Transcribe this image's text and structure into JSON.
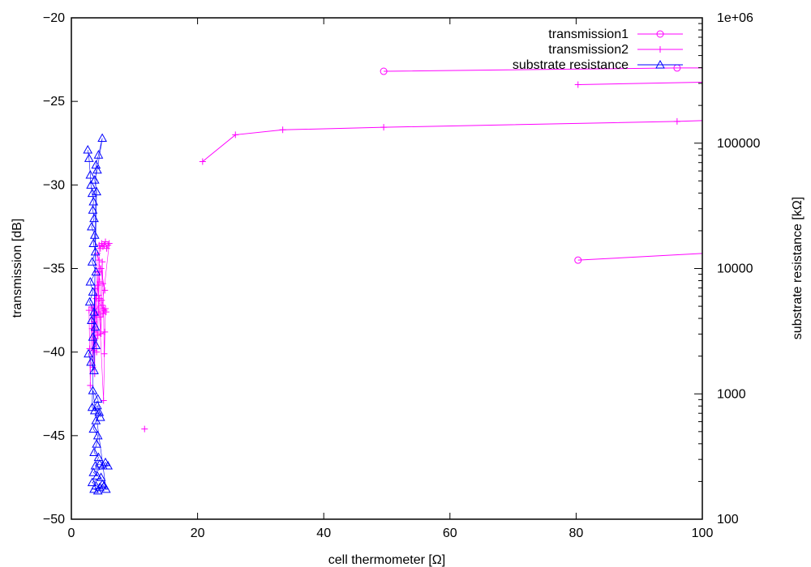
{
  "chart_data": {
    "type": "scatter",
    "xlabel": "cell thermometer [Ω]",
    "ylabel": "transmission [dB]",
    "y2label": "substrate resistance [kΩ]",
    "xlim": [
      0,
      100
    ],
    "ylim": [
      -50,
      -20
    ],
    "y2lim": [
      100,
      1000000
    ],
    "y2scale": "log",
    "xticks": [
      "0",
      "20",
      "40",
      "60",
      "80",
      "100"
    ],
    "yticks": [
      "−50",
      "−45",
      "−40",
      "−35",
      "−30",
      "−25",
      "−20"
    ],
    "y2ticks": [
      "100",
      "1000",
      "10000",
      "100000",
      "1e+06"
    ],
    "grid": false,
    "legend_position": "top-right",
    "colors": {
      "transmission1": "#ff00ff",
      "transmission2": "#ff00ff",
      "substrate": "#0000ff"
    },
    "series": [
      {
        "name": "transmission1",
        "marker": "circle",
        "segments": [
          [
            [
              49.5,
              -23.2
            ],
            [
              96.0,
              -23.0
            ],
            [
              100,
              -23.0
            ]
          ],
          [
            [
              80.3,
              -34.5
            ],
            [
              100,
              -34.1
            ]
          ]
        ]
      },
      {
        "name": "transmission2",
        "marker": "plus",
        "segments": [
          [
            [
              20.8,
              -28.6
            ],
            [
              26.0,
              -27.0
            ],
            [
              33.5,
              -26.7
            ],
            [
              49.5,
              -26.55
            ],
            [
              96.0,
              -26.2
            ],
            [
              100,
              -26.15
            ]
          ],
          [
            [
              80.3,
              -24.0
            ],
            [
              100,
              -23.85
            ]
          ],
          [
            [
              11.6,
              -44.6
            ]
          ]
        ],
        "cluster": [
          [
            2.8,
            -37.5
          ],
          [
            2.9,
            -39.8
          ],
          [
            3.0,
            -42.0
          ],
          [
            3.2,
            -37.3
          ],
          [
            3.3,
            -38.6
          ],
          [
            3.4,
            -40.9
          ],
          [
            3.5,
            -37.4
          ],
          [
            3.6,
            -39.9
          ],
          [
            3.7,
            -41.3
          ],
          [
            3.8,
            -36.2
          ],
          [
            3.9,
            -37.8
          ],
          [
            4.0,
            -38.8
          ],
          [
            4.1,
            -35.2
          ],
          [
            4.2,
            -36.0
          ],
          [
            4.3,
            -37.6
          ],
          [
            4.4,
            -34.5
          ],
          [
            4.5,
            -35.8
          ],
          [
            4.6,
            -37.9
          ],
          [
            4.7,
            -38.9
          ],
          [
            4.8,
            -36.9
          ],
          [
            4.9,
            -34.6
          ],
          [
            5.0,
            -35.9
          ],
          [
            5.1,
            -37.4
          ],
          [
            5.2,
            -40.1
          ],
          [
            5.3,
            -38.8
          ],
          [
            4.2,
            -39.0
          ],
          [
            4.4,
            -33.6
          ],
          [
            4.6,
            -33.8
          ],
          [
            4.8,
            -33.5
          ],
          [
            5.0,
            -33.7
          ],
          [
            5.2,
            -33.6
          ],
          [
            5.4,
            -33.4
          ],
          [
            5.6,
            -33.8
          ],
          [
            5.8,
            -33.6
          ],
          [
            6.0,
            -33.5
          ],
          [
            4.9,
            -37.2
          ],
          [
            5.0,
            -37.7
          ],
          [
            5.2,
            -37.5
          ],
          [
            5.4,
            -37.4
          ],
          [
            5.1,
            -42.9
          ],
          [
            4.3,
            -36.6
          ],
          [
            4.5,
            -36.8
          ],
          [
            3.6,
            -38.2
          ],
          [
            3.8,
            -39.2
          ],
          [
            4.0,
            -40.0
          ],
          [
            4.1,
            -34.1
          ],
          [
            5.3,
            -36.3
          ],
          [
            4.7,
            -35.0
          ],
          [
            3.9,
            -36.8
          ],
          [
            5.5,
            -37.6
          ]
        ]
      },
      {
        "name": "substrate resistance",
        "marker": "triangle",
        "cluster": [
          [
            2.6,
            -27.9
          ],
          [
            2.8,
            -28.4
          ],
          [
            3.0,
            -29.4
          ],
          [
            3.1,
            -30.0
          ],
          [
            3.3,
            -30.5
          ],
          [
            3.5,
            -31.0
          ],
          [
            3.4,
            -31.5
          ],
          [
            3.6,
            -32.0
          ],
          [
            3.2,
            -32.5
          ],
          [
            3.7,
            -33.0
          ],
          [
            3.5,
            -33.5
          ],
          [
            3.8,
            -34.0
          ],
          [
            3.3,
            -34.6
          ],
          [
            3.9,
            -35.2
          ],
          [
            3.0,
            -35.8
          ],
          [
            3.4,
            -36.4
          ],
          [
            2.9,
            -37.0
          ],
          [
            3.6,
            -37.6
          ],
          [
            3.2,
            -38.1
          ],
          [
            3.8,
            -38.5
          ],
          [
            3.4,
            -39.1
          ],
          [
            3.9,
            -39.6
          ],
          [
            2.7,
            -40.1
          ],
          [
            3.1,
            -40.6
          ],
          [
            3.6,
            -41.1
          ],
          [
            3.9,
            -28.8
          ],
          [
            4.3,
            -28.2
          ],
          [
            4.9,
            -27.2
          ],
          [
            4.1,
            -29.1
          ],
          [
            3.7,
            -29.7
          ],
          [
            4.0,
            -30.4
          ],
          [
            3.3,
            -43.3
          ],
          [
            3.7,
            -43.5
          ],
          [
            4.1,
            -43.2
          ],
          [
            4.4,
            -43.6
          ],
          [
            3.9,
            -44.1
          ],
          [
            3.5,
            -44.6
          ],
          [
            4.2,
            -45.0
          ],
          [
            4.0,
            -45.5
          ],
          [
            3.6,
            -46.0
          ],
          [
            4.3,
            -46.3
          ],
          [
            3.8,
            -46.8
          ],
          [
            4.5,
            -46.7
          ],
          [
            5.0,
            -46.8
          ],
          [
            5.4,
            -46.6
          ],
          [
            5.8,
            -46.8
          ],
          [
            3.5,
            -47.2
          ],
          [
            4.1,
            -47.4
          ],
          [
            4.7,
            -47.5
          ],
          [
            3.3,
            -47.8
          ],
          [
            3.9,
            -48.0
          ],
          [
            4.5,
            -48.1
          ],
          [
            5.2,
            -48.0
          ],
          [
            3.6,
            -48.2
          ],
          [
            4.2,
            -48.3
          ],
          [
            4.9,
            -47.9
          ],
          [
            5.5,
            -48.2
          ],
          [
            3.4,
            -42.3
          ],
          [
            4.2,
            -42.8
          ],
          [
            4.6,
            -43.9
          ]
        ]
      }
    ]
  }
}
